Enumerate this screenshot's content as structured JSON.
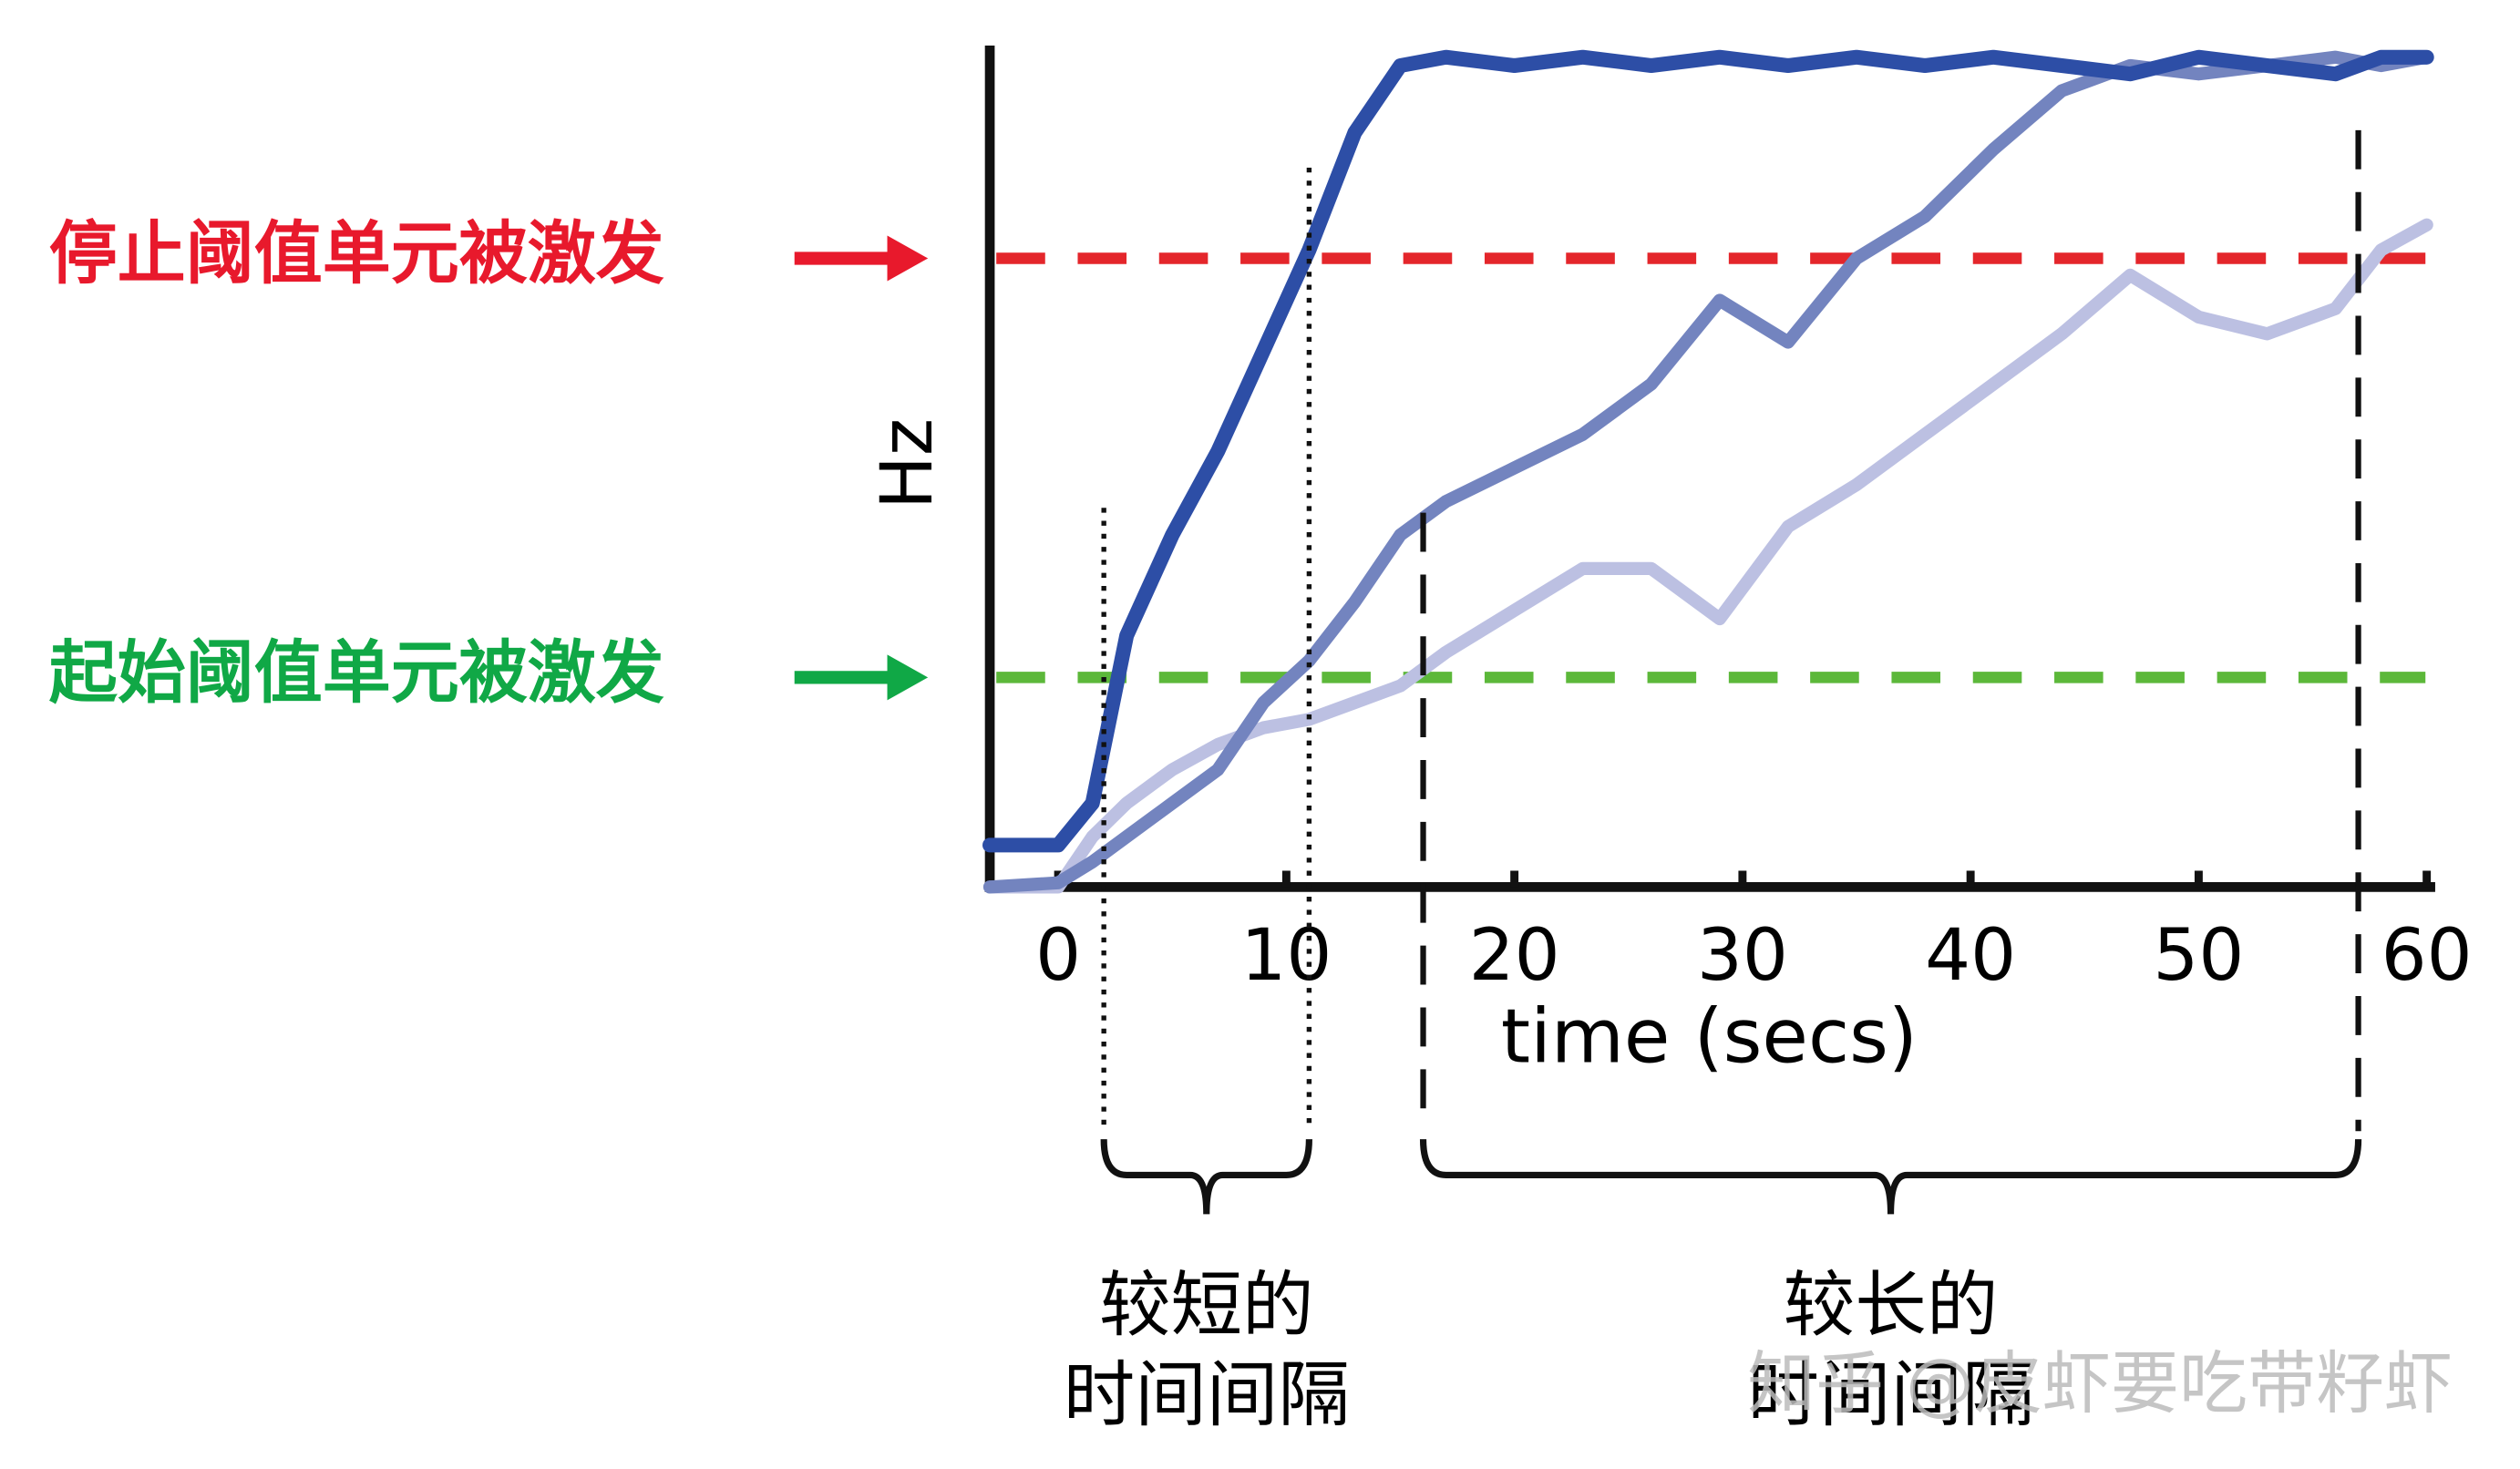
{
  "chart_data": {
    "type": "line",
    "ylabel": "Hz",
    "xlabel": "time (secs)",
    "x": [
      -3,
      0,
      1.5,
      3,
      5,
      7,
      9,
      11,
      13,
      15,
      17,
      20,
      23,
      26,
      29,
      32,
      35,
      38,
      41,
      44,
      47,
      50,
      53,
      56,
      58,
      60
    ],
    "xlim": [
      -3,
      60.3
    ],
    "ylim": [
      0,
      100
    ],
    "xticks": [
      0,
      10,
      20,
      30,
      40,
      50,
      60
    ],
    "series": [
      {
        "color": "#2d4ea6",
        "values": [
          5,
          5,
          10,
          30,
          42,
          52,
          64,
          76,
          90,
          98,
          99,
          98,
          99,
          98,
          99,
          98,
          99,
          98,
          99,
          98,
          97,
          99,
          98,
          97,
          99,
          99
        ]
      },
      {
        "color": "#7384bf",
        "values": [
          0,
          0.5,
          3,
          6,
          10,
          14,
          22,
          27,
          34,
          42,
          46,
          50,
          54,
          60,
          70,
          65,
          75,
          80,
          88,
          95,
          98,
          97,
          98,
          99,
          98,
          99
        ]
      },
      {
        "color": "#bcc0e2",
        "values": [
          0,
          0,
          6,
          10,
          14,
          17,
          19,
          20,
          22,
          24,
          28,
          33,
          38,
          38,
          32,
          43,
          48,
          54,
          60,
          66,
          73,
          68,
          66,
          69,
          76,
          79
        ]
      }
    ],
    "thresholds": [
      {
        "label": "停止阈值单元被激发",
        "value": 75,
        "color": "#e8192c",
        "line_color": "#e4262b"
      },
      {
        "label": "起始阈值单元被激发",
        "value": 25,
        "color": "#10a846",
        "line_color": "#5cb83a"
      }
    ],
    "intervals": [
      {
        "start": 2,
        "end": 11,
        "style": "dotted",
        "label_lines": [
          "较短的",
          "时间间隔"
        ]
      },
      {
        "start": 16,
        "end": 57,
        "style": "dashed",
        "label_lines": [
          "较长的",
          "时间间隔"
        ]
      }
    ],
    "watermark": "知乎 @皮虾要吃带籽虾"
  }
}
